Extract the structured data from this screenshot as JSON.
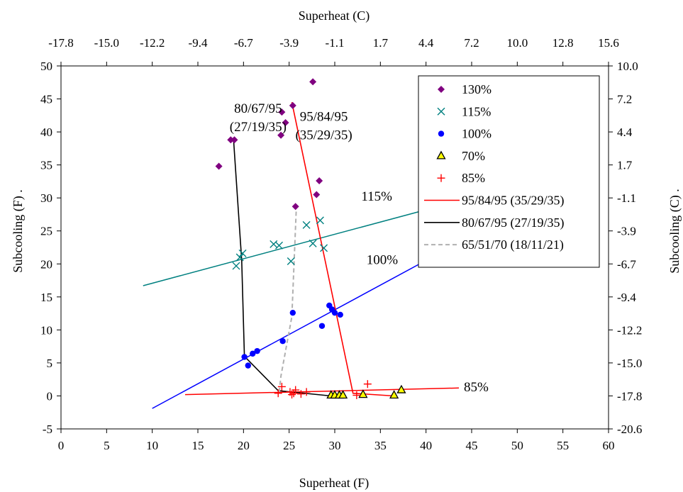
{
  "chart_data": {
    "type": "scatter",
    "title": "",
    "xlabel": "Superheat (F)",
    "x2label": "Superheat (C)",
    "ylabel": "Subcooling (F) .",
    "y2label": "Subcooling (C) .",
    "xlim": [
      0,
      60
    ],
    "ylim": [
      -5,
      50
    ],
    "xticks": [
      "0",
      "5",
      "10",
      "15",
      "20",
      "25",
      "30",
      "35",
      "40",
      "45",
      "50",
      "55",
      "60"
    ],
    "yticks": [
      "-5",
      "0",
      "5",
      "10",
      "15",
      "20",
      "25",
      "30",
      "35",
      "40",
      "45",
      "50"
    ],
    "x2ticks": [
      "-17.8",
      "-15.0",
      "-12.2",
      "-9.4",
      "-6.7",
      "-3.9",
      "-1.1",
      "1.7",
      "4.4",
      "7.2",
      "10.0",
      "12.8",
      "15.6"
    ],
    "y2ticks": [
      "-20.6",
      "-17.8",
      "-15.0",
      "-12.2",
      "-9.4",
      "-6.7",
      "-3.9",
      "-1.1",
      "1.7",
      "4.4",
      "7.2",
      "10.0"
    ],
    "grid": false,
    "legend_position": "top-right",
    "series": [
      {
        "name": "130%",
        "marker": "diamond",
        "color": "#800080",
        "points": [
          [
            17.3,
            34.8
          ],
          [
            18.6,
            38.8
          ],
          [
            19.0,
            38.8
          ],
          [
            24.1,
            39.5
          ],
          [
            24.2,
            43.0
          ],
          [
            24.6,
            41.4
          ],
          [
            25.4,
            44.0
          ],
          [
            27.6,
            47.6
          ],
          [
            25.7,
            28.7
          ],
          [
            28.0,
            30.5
          ],
          [
            28.3,
            32.6
          ]
        ]
      },
      {
        "name": "115%",
        "marker": "x",
        "color": "#008080",
        "points": [
          [
            19.2,
            19.7
          ],
          [
            19.6,
            21.0
          ],
          [
            19.9,
            21.6
          ],
          [
            23.3,
            23.0
          ],
          [
            23.9,
            22.8
          ],
          [
            25.2,
            20.4
          ],
          [
            26.9,
            25.9
          ],
          [
            27.6,
            23.1
          ],
          [
            28.4,
            26.6
          ],
          [
            28.8,
            22.4
          ]
        ]
      },
      {
        "name": "100%",
        "marker": "circle",
        "color": "#0000FF",
        "points": [
          [
            20.1,
            5.9
          ],
          [
            20.5,
            4.6
          ],
          [
            21.0,
            6.4
          ],
          [
            21.5,
            6.8
          ],
          [
            24.3,
            8.3
          ],
          [
            25.4,
            12.6
          ],
          [
            28.6,
            10.6
          ],
          [
            29.4,
            13.7
          ],
          [
            29.7,
            13.1
          ],
          [
            30.0,
            12.6
          ],
          [
            30.6,
            12.3
          ]
        ]
      },
      {
        "name": "70%",
        "marker": "triangle",
        "color": "#FFFF00",
        "points": [
          [
            29.6,
            0.1
          ],
          [
            30.0,
            0.1
          ],
          [
            30.5,
            0.1
          ],
          [
            30.9,
            0.1
          ],
          [
            33.1,
            0.2
          ],
          [
            36.5,
            0.1
          ],
          [
            37.3,
            0.9
          ]
        ]
      },
      {
        "name": "85%",
        "marker": "plus",
        "color": "#FF0000",
        "points": [
          [
            23.8,
            0.4
          ],
          [
            24.2,
            1.4
          ],
          [
            25.1,
            0.6
          ],
          [
            25.3,
            0.2
          ],
          [
            25.5,
            0.4
          ],
          [
            25.7,
            0.9
          ],
          [
            26.3,
            0.3
          ],
          [
            26.9,
            0.6
          ],
          [
            32.4,
            0.1
          ],
          [
            33.6,
            1.8
          ]
        ]
      },
      {
        "name": "95/84/95 (35/29/35)",
        "line": true,
        "color": "#FF0000",
        "dash": false,
        "points": [
          [
            25.3,
            44.5
          ],
          [
            32.0,
            0.4
          ],
          [
            36.5,
            0.0
          ]
        ]
      },
      {
        "name": "80/67/95 (27/19/35)",
        "line": true,
        "color": "#000000",
        "dash": false,
        "points": [
          [
            18.9,
            39.0
          ],
          [
            19.8,
            20.5
          ],
          [
            20.1,
            6.0
          ],
          [
            23.8,
            0.8
          ],
          [
            29.6,
            0.0
          ],
          [
            31.0,
            0.0
          ]
        ]
      },
      {
        "name": "65/51/70 (18/11/21)",
        "line": true,
        "color": "#B0B0B0",
        "dash": true,
        "points": [
          [
            25.8,
            29.0
          ],
          [
            25.3,
            12.0
          ],
          [
            24.1,
            3.0
          ],
          [
            23.9,
            0.4
          ]
        ]
      }
    ],
    "trendlines": [
      {
        "name": "115%",
        "color": "#008080",
        "x": [
          9.0,
          43.5
        ],
        "y": [
          16.7,
          29.5
        ]
      },
      {
        "name": "100%",
        "color": "#0000FF",
        "x": [
          10.0,
          39.3
        ],
        "y": [
          -1.9,
          20.0
        ]
      },
      {
        "name": "85%",
        "color": "#FF0000",
        "x": [
          13.6,
          43.6
        ],
        "y": [
          0.2,
          1.2
        ]
      }
    ],
    "annotations": [
      {
        "text": "80/67/95",
        "x": 21.6,
        "y": 42.9
      },
      {
        "text": "(27/19/35)",
        "x": 21.6,
        "y": 40.1
      },
      {
        "text": "95/84/95",
        "x": 28.8,
        "y": 41.7
      },
      {
        "text": "(35/29/35)",
        "x": 28.8,
        "y": 38.9
      },
      {
        "text": "115%",
        "x": 34.6,
        "y": 29.6
      },
      {
        "text": "100%",
        "x": 35.2,
        "y": 20.0
      },
      {
        "text": "85%",
        "x": 45.5,
        "y": 0.7
      }
    ]
  }
}
